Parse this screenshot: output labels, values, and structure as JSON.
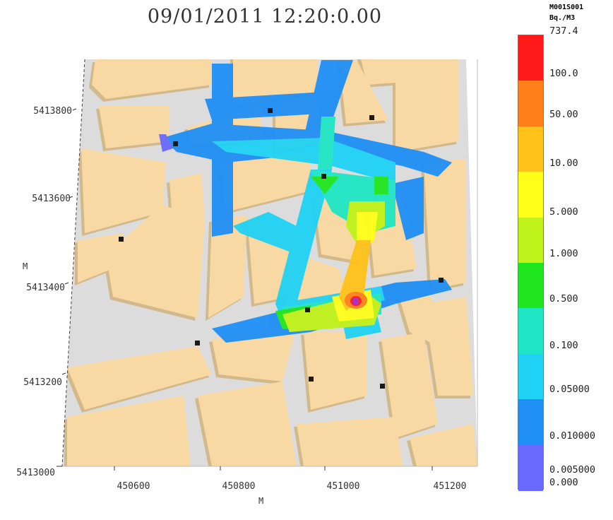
{
  "title": "09/01/2011  12:20:0.00",
  "y_axis": {
    "unit": "M",
    "ticks": [
      "5413800",
      "5413600",
      "5413400",
      "5413200",
      "5413000"
    ]
  },
  "x_axis": {
    "unit": "M",
    "ticks": [
      "450600",
      "450800",
      "451000",
      "451200"
    ]
  },
  "colorbar": {
    "title_line1": "M001S001",
    "title_line2": "Bq./M3",
    "labels": [
      "737.4",
      "100.0",
      "50.00",
      "10.00",
      "5.000",
      "1.000",
      "0.500",
      "0.100",
      "0.05000",
      "0.010000",
      "0.005000",
      "0.000"
    ],
    "colors": [
      "#ff1a1a",
      "#ff7f1a",
      "#ffc21a",
      "#ffff1a",
      "#bff21a",
      "#1fe61f",
      "#1fe6c4",
      "#1fd2f5",
      "#1f8ff5",
      "#6a6aff"
    ]
  },
  "colors": {
    "building": "#f9d9a3",
    "building_shadow": "#d2b98c",
    "street": "#dcdcdc",
    "receptor": "#1a1a1a",
    "source": "#b030c0"
  }
}
